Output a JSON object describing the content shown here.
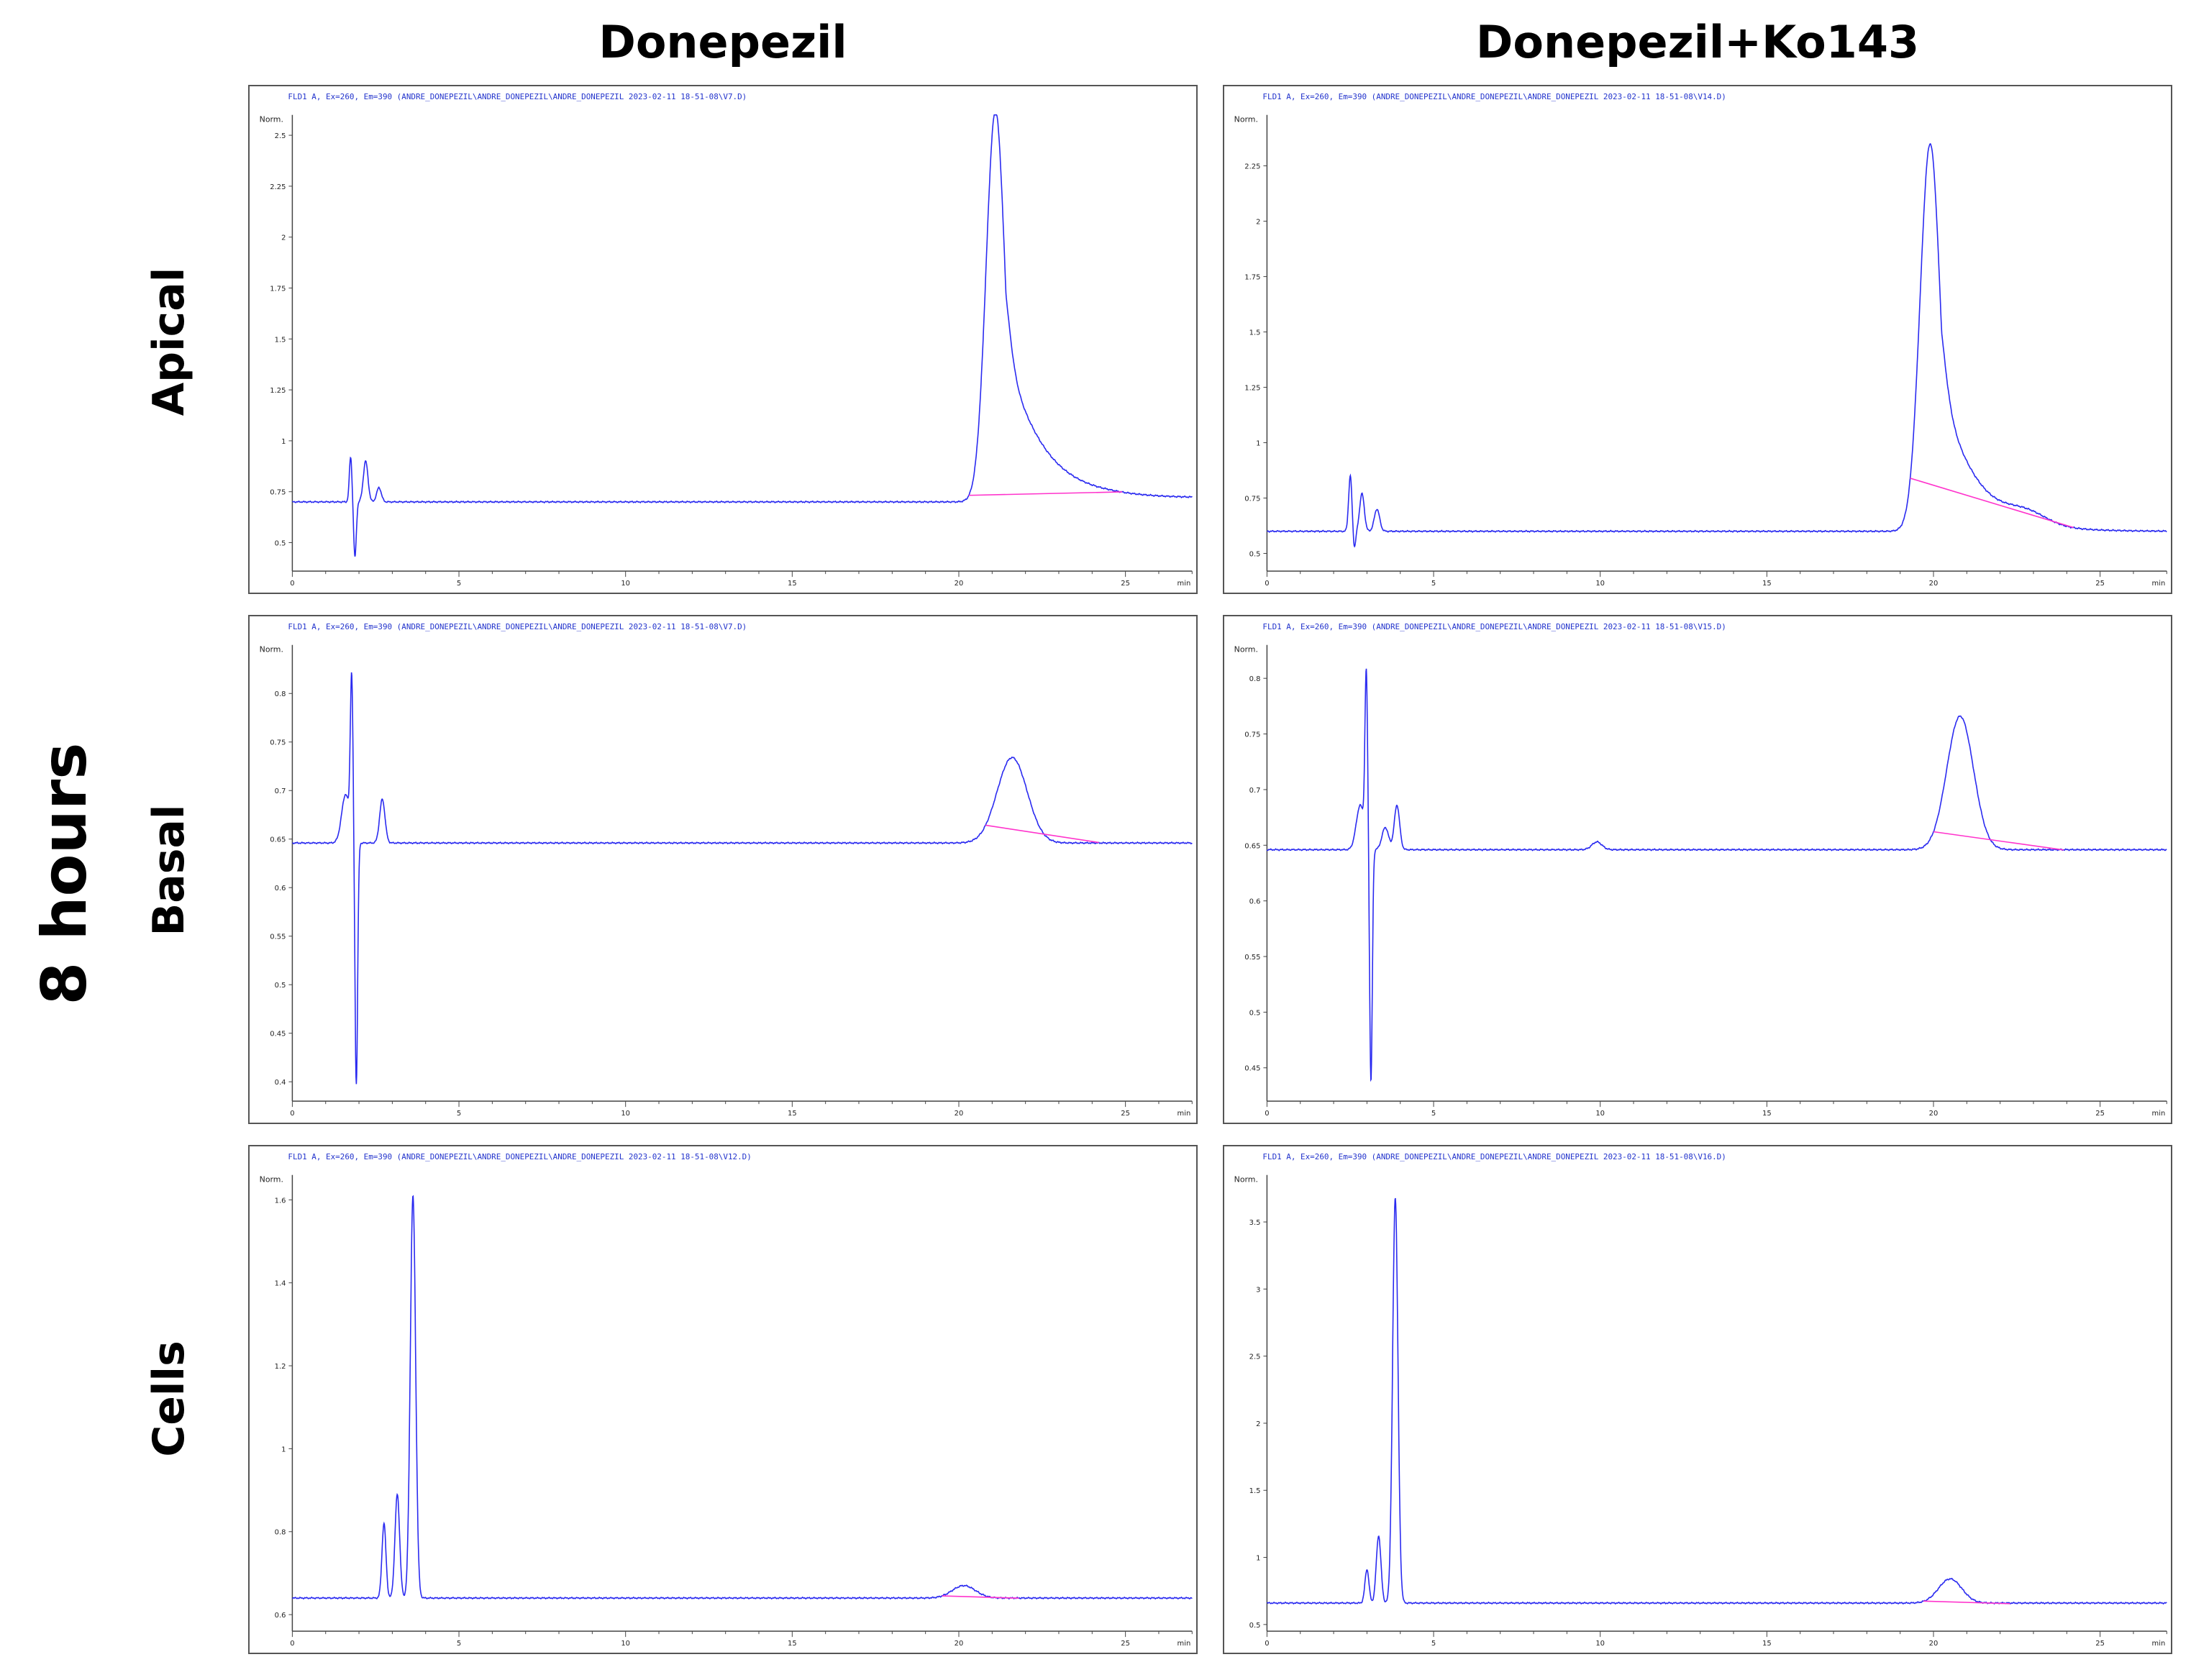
{
  "figure": {
    "column_titles": [
      "Donepezil",
      "Donepezil+Ko143"
    ],
    "row_labels": [
      "Apical",
      "Basal",
      "Cells"
    ],
    "time_label": "8 hours",
    "colors": {
      "trace": "#2a2af0",
      "baseline": "#ff33cc",
      "axis": "#444444",
      "header_text": "#2233cc"
    }
  },
  "chart_data": [
    {
      "type": "line",
      "column": "Donepezil",
      "row": "Apical",
      "header": "FLD1 A, Ex=260, Em=390 (ANDRE_DONEPEZIL\\ANDRE_DONEPEZIL\\ANDRE_DONEPEZIL 2023-02-11 18-51-08\\V7.D)",
      "unit_label": "Norm.",
      "x_unit": "min",
      "x_ticks": [
        0,
        5,
        10,
        15,
        20,
        25
      ],
      "xlim": [
        0,
        27
      ],
      "y_ticks": [
        0.5,
        0.75,
        1,
        1.25,
        1.5,
        1.75,
        2,
        2.25,
        2.5
      ],
      "y_tick_labels": [
        "0.5",
        "0.75",
        "1",
        "1.25",
        "1.5",
        "1.75",
        "2",
        "2.25",
        "2.5"
      ],
      "ylim": [
        0.36,
        2.6
      ],
      "baseline": 0.7,
      "features": [
        {
          "kind": "spike",
          "x": 1.75,
          "h": 0.22,
          "w": 0.04
        },
        {
          "kind": "spike",
          "x": 1.88,
          "h": -0.27,
          "w": 0.04
        },
        {
          "kind": "peak",
          "x": 2.2,
          "h": 0.2,
          "w": 0.07
        },
        {
          "kind": "peak",
          "x": 2.6,
          "h": 0.07,
          "w": 0.07
        },
        {
          "kind": "tailed_peak",
          "x": 21.1,
          "h": 1.92,
          "w": 0.28,
          "tail": 1.05
        },
        {
          "kind": "drift",
          "from": 21.5,
          "h": 0.02
        }
      ],
      "integration_line": {
        "from": 20.3,
        "to": 24.9
      }
    },
    {
      "type": "line",
      "column": "Donepezil+Ko143",
      "row": "Apical",
      "header": "FLD1 A, Ex=260, Em=390 (ANDRE_DONEPEZIL\\ANDRE_DONEPEZIL\\ANDRE_DONEPEZIL 2023-02-11 18-51-08\\V14.D)",
      "unit_label": "Norm.",
      "x_unit": "min",
      "x_ticks": [
        0,
        5,
        10,
        15,
        20,
        25
      ],
      "xlim": [
        0,
        27
      ],
      "y_ticks": [
        0.5,
        0.75,
        1,
        1.25,
        1.5,
        1.75,
        2,
        2.25
      ],
      "y_tick_labels": [
        "0.5",
        "0.75",
        "1",
        "1.25",
        "1.5",
        "1.75",
        "2",
        "2.25"
      ],
      "ylim": [
        0.42,
        2.48
      ],
      "baseline": 0.6,
      "features": [
        {
          "kind": "spike",
          "x": 2.5,
          "h": 0.25,
          "w": 0.05
        },
        {
          "kind": "spike",
          "x": 2.62,
          "h": -0.08,
          "w": 0.04
        },
        {
          "kind": "peak",
          "x": 2.85,
          "h": 0.17,
          "w": 0.07
        },
        {
          "kind": "peak",
          "x": 3.3,
          "h": 0.1,
          "w": 0.08
        },
        {
          "kind": "tailed_peak",
          "x": 19.9,
          "h": 1.75,
          "w": 0.3,
          "tail": 1.0
        },
        {
          "kind": "peak",
          "x": 22.8,
          "h": 0.05,
          "w": 0.6
        }
      ],
      "integration_line": {
        "from": 19.3,
        "to": 24.2
      }
    },
    {
      "type": "line",
      "column": "Donepezil",
      "row": "Basal",
      "header": "FLD1 A, Ex=260, Em=390 (ANDRE_DONEPEZIL\\ANDRE_DONEPEZIL\\ANDRE_DONEPEZIL 2023-02-11 18-51-08\\V7.D)",
      "unit_label": "Norm.",
      "x_unit": "min",
      "x_ticks": [
        0,
        5,
        10,
        15,
        20,
        25
      ],
      "xlim": [
        0,
        27
      ],
      "y_ticks": [
        0.4,
        0.45,
        0.5,
        0.55,
        0.6,
        0.65,
        0.7,
        0.75,
        0.8
      ],
      "y_tick_labels": [
        "0.4",
        "0.45",
        "0.5",
        "0.55",
        "0.6",
        "0.65",
        "0.7",
        "0.75",
        "0.8"
      ],
      "ylim": [
        0.38,
        0.85
      ],
      "baseline": 0.646,
      "features": [
        {
          "kind": "peak",
          "x": 1.6,
          "h": 0.05,
          "w": 0.12
        },
        {
          "kind": "spike",
          "x": 1.78,
          "h": 0.16,
          "w": 0.04
        },
        {
          "kind": "spike",
          "x": 1.92,
          "h": -0.25,
          "w": 0.04
        },
        {
          "kind": "peak",
          "x": 2.7,
          "h": 0.045,
          "w": 0.08
        },
        {
          "kind": "peak",
          "x": 21.6,
          "h": 0.088,
          "w": 0.45
        }
      ],
      "integration_line": {
        "from": 20.8,
        "to": 24.2
      }
    },
    {
      "type": "line",
      "column": "Donepezil+Ko143",
      "row": "Basal",
      "header": "FLD1 A, Ex=260, Em=390 (ANDRE_DONEPEZIL\\ANDRE_DONEPEZIL\\ANDRE_DONEPEZIL 2023-02-11 18-51-08\\V15.D)",
      "unit_label": "Norm.",
      "x_unit": "min",
      "x_ticks": [
        0,
        5,
        10,
        15,
        20,
        25
      ],
      "xlim": [
        0,
        27
      ],
      "y_ticks": [
        0.45,
        0.5,
        0.55,
        0.6,
        0.65,
        0.7,
        0.75,
        0.8
      ],
      "y_tick_labels": [
        "0.45",
        "0.5",
        "0.55",
        "0.6",
        "0.65",
        "0.7",
        "0.75",
        "0.8"
      ],
      "ylim": [
        0.42,
        0.83
      ],
      "baseline": 0.646,
      "features": [
        {
          "kind": "peak",
          "x": 2.8,
          "h": 0.04,
          "w": 0.12
        },
        {
          "kind": "spike",
          "x": 2.98,
          "h": 0.15,
          "w": 0.04
        },
        {
          "kind": "spike",
          "x": 3.12,
          "h": -0.21,
          "w": 0.04
        },
        {
          "kind": "peak",
          "x": 3.55,
          "h": 0.02,
          "w": 0.1
        },
        {
          "kind": "peak",
          "x": 3.9,
          "h": 0.04,
          "w": 0.08
        },
        {
          "kind": "peak",
          "x": 9.9,
          "h": 0.007,
          "w": 0.15
        },
        {
          "kind": "peak",
          "x": 20.8,
          "h": 0.12,
          "w": 0.4
        }
      ],
      "integration_line": {
        "from": 20.0,
        "to": 23.9
      }
    },
    {
      "type": "line",
      "column": "Donepezil",
      "row": "Cells",
      "header": "FLD1 A, Ex=260, Em=390 (ANDRE_DONEPEZIL\\ANDRE_DONEPEZIL\\ANDRE_DONEPEZIL 2023-02-11 18-51-08\\V12.D)",
      "unit_label": "Norm.",
      "x_unit": "min",
      "x_ticks": [
        0,
        5,
        10,
        15,
        20,
        25
      ],
      "xlim": [
        0,
        27
      ],
      "y_ticks": [
        0.6,
        0.8,
        1,
        1.2,
        1.4,
        1.6
      ],
      "y_tick_labels": [
        "0.6",
        "0.8",
        "1",
        "1.2",
        "1.4",
        "1.6"
      ],
      "ylim": [
        0.56,
        1.66
      ],
      "baseline": 0.64,
      "features": [
        {
          "kind": "peak",
          "x": 2.75,
          "h": 0.18,
          "w": 0.06
        },
        {
          "kind": "peak",
          "x": 3.15,
          "h": 0.25,
          "w": 0.07
        },
        {
          "kind": "peak",
          "x": 3.62,
          "h": 0.97,
          "w": 0.08
        },
        {
          "kind": "peak",
          "x": 20.15,
          "h": 0.03,
          "w": 0.35
        }
      ],
      "integration_line": {
        "from": 19.5,
        "to": 21.8
      }
    },
    {
      "type": "line",
      "column": "Donepezil+Ko143",
      "row": "Cells",
      "header": "FLD1 A, Ex=260, Em=390 (ANDRE_DONEPEZIL\\ANDRE_DONEPEZIL\\ANDRE_DONEPEZIL 2023-02-11 18-51-08\\V16.D)",
      "unit_label": "Norm.",
      "x_unit": "min",
      "x_ticks": [
        0,
        5,
        10,
        15,
        20,
        25
      ],
      "xlim": [
        0,
        27
      ],
      "y_ticks": [
        0.5,
        1,
        1.5,
        2,
        2.5,
        3,
        3.5
      ],
      "y_tick_labels": [
        "0.5",
        "1",
        "1.5",
        "2",
        "2.5",
        "3",
        "3.5"
      ],
      "ylim": [
        0.45,
        3.85
      ],
      "baseline": 0.66,
      "features": [
        {
          "kind": "peak",
          "x": 3.0,
          "h": 0.25,
          "w": 0.06
        },
        {
          "kind": "peak",
          "x": 3.35,
          "h": 0.5,
          "w": 0.07
        },
        {
          "kind": "peak",
          "x": 3.85,
          "h": 3.02,
          "w": 0.08
        },
        {
          "kind": "peak",
          "x": 20.5,
          "h": 0.18,
          "w": 0.35
        }
      ],
      "integration_line": {
        "from": 19.7,
        "to": 22.3
      }
    }
  ]
}
